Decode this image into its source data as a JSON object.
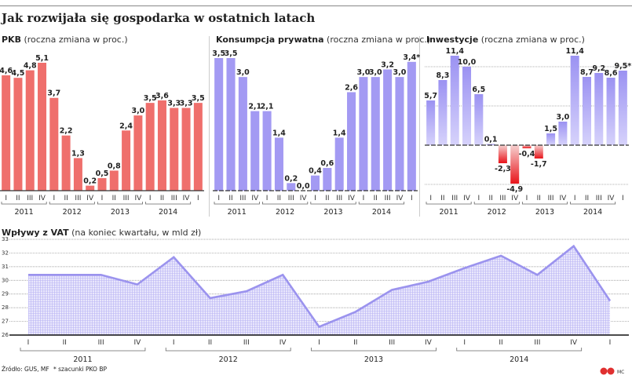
{
  "title": "Jak rozwijała się gospodarka w ostatnich latach",
  "quarter_labels": [
    "I",
    "II",
    "III",
    "IV",
    "I",
    "II",
    "III",
    "IV",
    "I",
    "II",
    "III",
    "IV",
    "I",
    "II",
    "III",
    "IV",
    "I"
  ],
  "years": [
    "2011",
    "2012",
    "2013",
    "2014"
  ],
  "footer": {
    "source": "Źródło: GUS, MF",
    "note": "* szacunki PKO BP",
    "credit": "MC"
  },
  "colors": {
    "pkb": "#ef6f6c",
    "konsumpcja": "#a39af3",
    "inwestycje_pos": "#a39af3",
    "inwestycje_neg": "#e8141a",
    "vat_line": "#9b93ee",
    "vat_fill": "#d8d5fa"
  },
  "chart_data": [
    {
      "type": "bar",
      "title_bold": "PKB",
      "title_rest": " (roczna zmiana w proc.)",
      "categories": [
        "2011 I",
        "2011 II",
        "2011 III",
        "2011 IV",
        "2012 I",
        "2012 II",
        "2012 III",
        "2012 IV",
        "2013 I",
        "2013 II",
        "2013 III",
        "2013 IV",
        "2014 I",
        "2014 II",
        "2014 III",
        "2014 IV",
        "2015 I"
      ],
      "values": [
        4.6,
        4.5,
        4.8,
        5.1,
        3.7,
        2.2,
        1.3,
        0.2,
        0.5,
        0.8,
        2.4,
        3.0,
        3.5,
        3.6,
        3.3,
        3.3,
        3.5
      ],
      "labels": [
        "4,6",
        "4,5",
        "4,8",
        "5,1",
        "3,7",
        "2,2",
        "1,3",
        "0,2",
        "0,5",
        "0,8",
        "2,4",
        "3,0",
        "3,5",
        "3,6",
        "3,3",
        "3,3",
        "3,5"
      ],
      "ylim": [
        0,
        5.1
      ]
    },
    {
      "type": "bar",
      "title_bold": "Konsumpcja prywatna",
      "title_rest": " (roczna zmiana w proc.)",
      "categories": [
        "2011 I",
        "2011 II",
        "2011 III",
        "2011 IV",
        "2012 I",
        "2012 II",
        "2012 III",
        "2012 IV",
        "2013 I",
        "2013 II",
        "2013 III",
        "2013 IV",
        "2014 I",
        "2014 II",
        "2014 III",
        "2014 IV",
        "2015 I"
      ],
      "values": [
        3.5,
        3.5,
        3.0,
        2.1,
        2.1,
        1.4,
        0.2,
        0.0,
        0.4,
        0.6,
        1.4,
        2.6,
        3.0,
        3.0,
        3.2,
        3.0,
        3.4
      ],
      "labels": [
        "3,5",
        "3,5",
        "3,0",
        "2,1",
        "2,1",
        "1,4",
        "0,2",
        "0,0",
        "0,4",
        "0,6",
        "1,4",
        "2,6",
        "3,0",
        "3,0",
        "3,2",
        "3,0",
        "3,4*"
      ],
      "ylim": [
        0,
        3.5
      ]
    },
    {
      "type": "bar",
      "title_bold": "Inwestycje",
      "title_rest": " (roczna zmiana w proc.)",
      "categories": [
        "2011 I",
        "2011 II",
        "2011 III",
        "2011 IV",
        "2012 I",
        "2012 II",
        "2012 III",
        "2012 IV",
        "2013 I",
        "2013 II",
        "2013 III",
        "2013 IV",
        "2014 I",
        "2014 II",
        "2014 III",
        "2014 IV",
        "2015 I"
      ],
      "values": [
        5.7,
        8.3,
        11.4,
        10.0,
        6.5,
        0.1,
        -2.3,
        -4.9,
        -0.4,
        -1.7,
        1.5,
        3.0,
        11.4,
        8.7,
        9.2,
        8.6,
        9.5
      ],
      "labels": [
        "5,7",
        "8,3",
        "11,4",
        "10,0",
        "6,5",
        "0,1",
        "-2,3",
        "-4,9",
        "-0,4",
        "-1,7",
        "1,5",
        "3,0",
        "11,4",
        "8,7",
        "9,2",
        "8,6",
        "9,5*"
      ],
      "ylim": [
        -5,
        12
      ],
      "gridlines": [
        -5,
        5,
        10
      ]
    },
    {
      "type": "area",
      "title_bold": "Wpływy z VAT",
      "title_rest": " (na koniec kwartału, w mld zł)",
      "categories": [
        "2011 I",
        "2011 II",
        "2011 III",
        "2011 IV",
        "2012 I",
        "2012 II",
        "2012 III",
        "2012 IV",
        "2013 I",
        "2013 II",
        "2013 III",
        "2013 IV",
        "2014 I",
        "2014 II",
        "2014 III",
        "2014 IV",
        "2015 I"
      ],
      "values": [
        30.4,
        30.4,
        30.4,
        29.7,
        31.7,
        28.7,
        29.2,
        30.4,
        26.6,
        27.7,
        29.3,
        29.9,
        30.9,
        31.8,
        30.4,
        32.5,
        28.5
      ],
      "ylim": [
        26,
        33
      ],
      "yticks": [
        "26",
        "27",
        "28",
        "29",
        "30",
        "31",
        "32",
        "33"
      ],
      "grid": true
    }
  ]
}
